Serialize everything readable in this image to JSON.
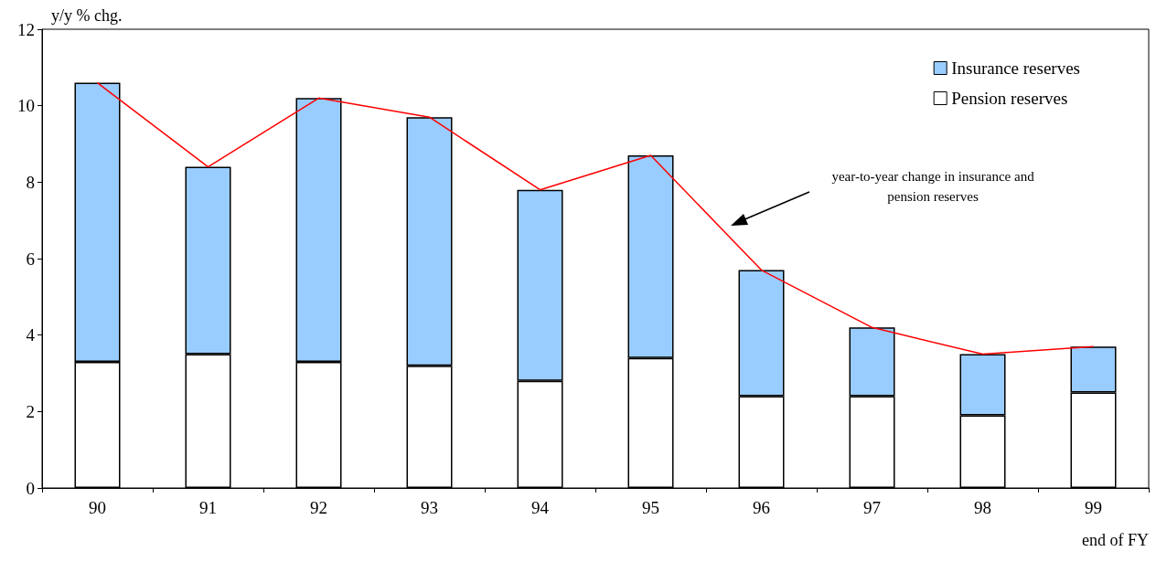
{
  "chart_data": {
    "type": "bar",
    "stacked": true,
    "ylabel": "y/y % chg.",
    "xlabel": "end of FY",
    "categories": [
      "90",
      "91",
      "92",
      "93",
      "94",
      "95",
      "96",
      "97",
      "98",
      "99"
    ],
    "ylim": [
      0,
      12
    ],
    "yticks": [
      0,
      2,
      4,
      6,
      8,
      10,
      12
    ],
    "grid": false,
    "legend": "top right",
    "series": [
      {
        "name": "Pension reserves",
        "color": "#ffffff",
        "values": [
          3.3,
          3.5,
          3.3,
          3.2,
          2.8,
          3.4,
          2.4,
          2.4,
          1.9,
          2.5
        ]
      },
      {
        "name": "Insurance reserves",
        "color": "#99ccff",
        "values": [
          7.3,
          4.9,
          6.9,
          6.5,
          5.0,
          5.3,
          3.3,
          1.8,
          1.6,
          1.2
        ]
      },
      {
        "type": "line",
        "color": "#ff0000",
        "marker": "none",
        "values": [
          10.6,
          8.4,
          10.2,
          9.7,
          7.8,
          8.7,
          5.7,
          4.2,
          3.5,
          3.7
        ]
      }
    ],
    "annotations": [
      "year-to-year change in insurance and pension reserves"
    ]
  }
}
